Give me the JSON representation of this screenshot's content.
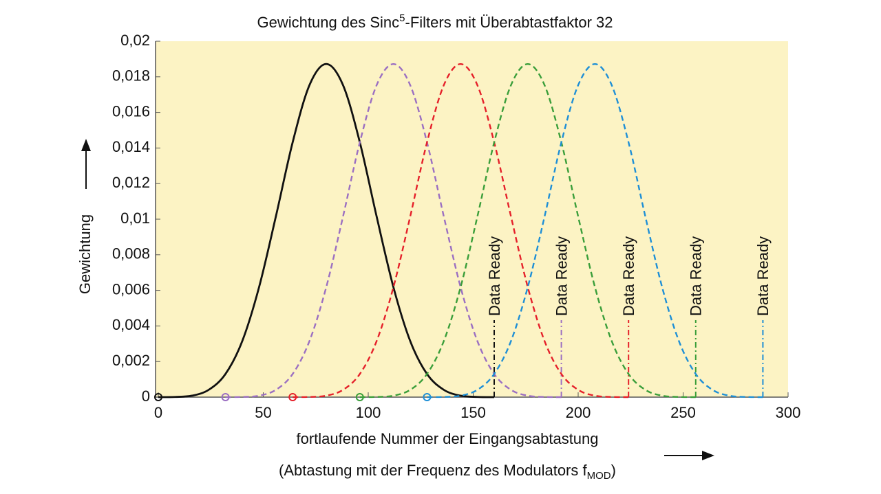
{
  "chart_data": {
    "type": "line",
    "title": [
      "Gewichtung des Sinc",
      "5",
      "-Filters mit Überabtastfaktor 32"
    ],
    "xlabel": [
      "fortlaufende Nummer der Eingangsabtastung",
      "(Abtastung mit der Frequenz des Modulators f",
      "MOD",
      ")"
    ],
    "ylabel": "Gewichtung",
    "xlim": [
      0,
      300
    ],
    "ylim": [
      0,
      0.02
    ],
    "xticks": [
      0,
      50,
      100,
      150,
      200,
      250,
      300
    ],
    "yticks": [
      0,
      {
        "value": 0.002,
        "label": "0,002"
      },
      {
        "value": 0.004,
        "label": "0,004"
      },
      {
        "value": 0.006,
        "label": "0,006"
      },
      {
        "value": 0.008,
        "label": "0,008"
      },
      {
        "value": 0.01,
        "label": "0,01"
      },
      {
        "value": 0.012,
        "label": "0,012"
      },
      {
        "value": 0.014,
        "label": "0,014"
      },
      {
        "value": 0.016,
        "label": "0,016"
      },
      {
        "value": 0.018,
        "label": "0,018"
      },
      {
        "value": 0.02,
        "label": "0,02"
      }
    ],
    "x": [
      0,
      8,
      16,
      24,
      32,
      40,
      48,
      56,
      64,
      72,
      80,
      88,
      96,
      104,
      112,
      120,
      128,
      136,
      144,
      152,
      160,
      168,
      176,
      184,
      192,
      200,
      208,
      216,
      224,
      232,
      240,
      248,
      256,
      264,
      272,
      280,
      288
    ],
    "series": [
      {
        "color": "#111111",
        "dashed": false,
        "values": [
          0,
          1e-05,
          8e-05,
          0.00041,
          0.0013,
          0.00315,
          0.00618,
          0.01015,
          0.01432,
          0.01753,
          0.01872,
          0.01753,
          0.01432,
          0.01015,
          0.00618,
          0.00315,
          0.0013,
          0.00041,
          8e-05,
          1e-05,
          0,
          null,
          null,
          null,
          null,
          null,
          null,
          null,
          null,
          null,
          null,
          null,
          null,
          null,
          null,
          null,
          null
        ]
      },
      {
        "color": "#9b6fc2",
        "dashed": true,
        "values": [
          null,
          null,
          null,
          null,
          0,
          1e-05,
          8e-05,
          0.00041,
          0.0013,
          0.00315,
          0.00618,
          0.01015,
          0.01432,
          0.01753,
          0.01872,
          0.01753,
          0.01432,
          0.01015,
          0.00618,
          0.00315,
          0.0013,
          0.00041,
          8e-05,
          1e-05,
          0,
          null,
          null,
          null,
          null,
          null,
          null,
          null,
          null,
          null,
          null,
          null,
          null
        ]
      },
      {
        "color": "#e5202a",
        "dashed": true,
        "values": [
          null,
          null,
          null,
          null,
          null,
          null,
          null,
          null,
          0,
          1e-05,
          8e-05,
          0.00041,
          0.0013,
          0.00315,
          0.00618,
          0.01015,
          0.01432,
          0.01753,
          0.01872,
          0.01753,
          0.01432,
          0.01015,
          0.00618,
          0.00315,
          0.0013,
          0.00041,
          8e-05,
          1e-05,
          0,
          null,
          null,
          null,
          null,
          null,
          null,
          null,
          null
        ]
      },
      {
        "color": "#3a9e3a",
        "dashed": true,
        "values": [
          null,
          null,
          null,
          null,
          null,
          null,
          null,
          null,
          null,
          null,
          null,
          null,
          0,
          1e-05,
          8e-05,
          0.00041,
          0.0013,
          0.00315,
          0.00618,
          0.01015,
          0.01432,
          0.01753,
          0.01872,
          0.01753,
          0.01432,
          0.01015,
          0.00618,
          0.00315,
          0.0013,
          0.00041,
          8e-05,
          1e-05,
          0,
          null,
          null,
          null,
          null
        ]
      },
      {
        "color": "#1e8fd6",
        "dashed": true,
        "values": [
          null,
          null,
          null,
          null,
          null,
          null,
          null,
          null,
          null,
          null,
          null,
          null,
          null,
          null,
          null,
          null,
          0,
          1e-05,
          8e-05,
          0.00041,
          0.0013,
          0.00315,
          0.00618,
          0.01015,
          0.01432,
          0.01753,
          0.01872,
          0.01753,
          0.01432,
          0.01015,
          0.00618,
          0.00315,
          0.0013,
          0.00041,
          8e-05,
          1e-05,
          0
        ]
      }
    ],
    "annotations": [
      {
        "x": 160,
        "text": "Data Ready",
        "color": "#111111"
      },
      {
        "x": 192,
        "text": "Data Ready",
        "color": "#9b6fc2"
      },
      {
        "x": 224,
        "text": "Data Ready",
        "color": "#e5202a"
      },
      {
        "x": 256,
        "text": "Data Ready",
        "color": "#3a9e3a"
      },
      {
        "x": 288,
        "text": "Data Ready",
        "color": "#1e8fd6"
      }
    ]
  }
}
